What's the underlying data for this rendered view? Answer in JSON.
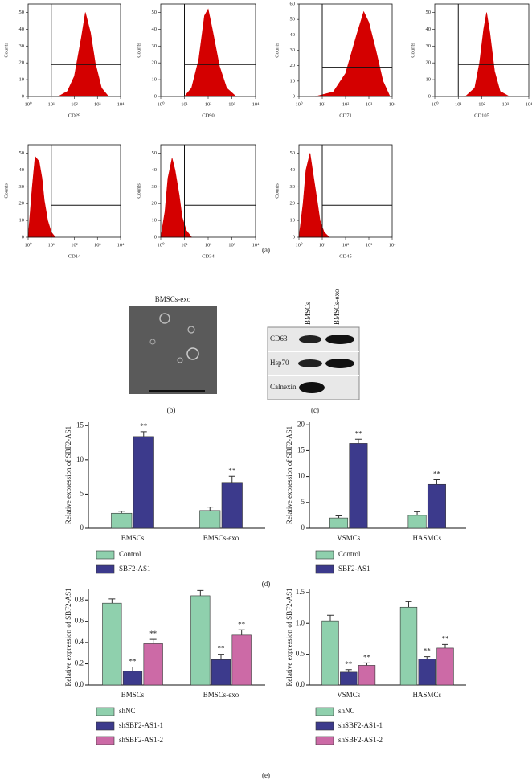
{
  "panel_labels": [
    "(a)",
    "(b)",
    "(c)",
    "(d)",
    "(e)"
  ],
  "micrograph": {
    "title": "BMSCs-exo"
  },
  "blot": {
    "lanes": [
      "BMSCs",
      "BMSCs-exo"
    ],
    "rows": [
      "CD63",
      "Hsp70",
      "Calnexin"
    ]
  },
  "chart_data": [
    {
      "type": "area",
      "x_label": "CD29",
      "y_label": "Counts",
      "xlog": true,
      "xlim": [
        1,
        10000
      ],
      "xticks": [
        {
          "value": 1,
          "label": "10⁰"
        },
        {
          "value": 10,
          "label": "10¹"
        },
        {
          "value": 100,
          "label": "10²"
        },
        {
          "value": 1000,
          "label": "10³"
        },
        {
          "value": 10000,
          "label": "10⁴"
        }
      ],
      "ylim": [
        0,
        55
      ],
      "yticks": [
        0,
        10,
        20,
        30,
        40,
        50
      ],
      "color": "#d40000",
      "x": [
        20,
        50,
        100,
        200,
        300,
        500,
        800,
        1500,
        3000
      ],
      "values": [
        0,
        3,
        12,
        35,
        50,
        38,
        20,
        5,
        0
      ],
      "gate_x": 10,
      "gate_y": 19
    },
    {
      "type": "area",
      "x_label": "CD90",
      "y_label": "Counts",
      "xlog": true,
      "xlim": [
        1,
        10000
      ],
      "xticks": [
        {
          "value": 1,
          "label": "10⁰"
        },
        {
          "value": 10,
          "label": "10¹"
        },
        {
          "value": 100,
          "label": "10²"
        },
        {
          "value": 1000,
          "label": "10³"
        },
        {
          "value": 10000,
          "label": "10⁴"
        }
      ],
      "ylim": [
        0,
        55
      ],
      "yticks": [
        0,
        10,
        20,
        30,
        40,
        50
      ],
      "color": "#d40000",
      "x": [
        10,
        20,
        40,
        70,
        100,
        150,
        300,
        600,
        1500
      ],
      "values": [
        0,
        5,
        22,
        48,
        52,
        40,
        18,
        5,
        0
      ],
      "gate_x": 10,
      "gate_y": 19
    },
    {
      "type": "area",
      "x_label": "CD71",
      "y_label": "Counts",
      "xlog": true,
      "xlim": [
        1,
        10000
      ],
      "xticks": [
        {
          "value": 1,
          "label": "10⁰"
        },
        {
          "value": 10,
          "label": "10¹"
        },
        {
          "value": 100,
          "label": "10²"
        },
        {
          "value": 1000,
          "label": "10³"
        },
        {
          "value": 10000,
          "label": "10⁴"
        }
      ],
      "ylim": [
        0,
        60
      ],
      "yticks": [
        0,
        10,
        20,
        30,
        40,
        50,
        60
      ],
      "color": "#d40000",
      "x": [
        5,
        30,
        100,
        300,
        600,
        1000,
        2000,
        4000,
        8000
      ],
      "values": [
        0,
        3,
        15,
        40,
        55,
        48,
        30,
        10,
        0
      ],
      "gate_x": 10,
      "gate_y": 19
    },
    {
      "type": "area",
      "x_label": "CD105",
      "y_label": "Counts",
      "xlog": true,
      "xlim": [
        1,
        10000
      ],
      "xticks": [
        {
          "value": 1,
          "label": "10⁰"
        },
        {
          "value": 10,
          "label": "10¹"
        },
        {
          "value": 100,
          "label": "10²"
        },
        {
          "value": 1000,
          "label": "10³"
        },
        {
          "value": 10000,
          "label": "10⁴"
        }
      ],
      "ylim": [
        0,
        55
      ],
      "yticks": [
        0,
        10,
        20,
        30,
        40,
        50
      ],
      "color": "#d40000",
      "x": [
        20,
        50,
        80,
        120,
        160,
        220,
        350,
        600,
        1500
      ],
      "values": [
        0,
        5,
        20,
        40,
        50,
        38,
        15,
        3,
        0
      ],
      "gate_x": 10,
      "gate_y": 19
    },
    {
      "type": "area",
      "x_label": "CD14",
      "y_label": "Counts",
      "xlog": true,
      "xlim": [
        1,
        10000
      ],
      "xticks": [
        {
          "value": 1,
          "label": "10⁰"
        },
        {
          "value": 10,
          "label": "10¹"
        },
        {
          "value": 100,
          "label": "10²"
        },
        {
          "value": 1000,
          "label": "10³"
        },
        {
          "value": 10000,
          "label": "10⁴"
        }
      ],
      "ylim": [
        0,
        55
      ],
      "yticks": [
        0,
        10,
        20,
        30,
        40,
        50
      ],
      "color": "#d40000",
      "x": [
        1,
        1.5,
        2,
        3,
        4,
        5,
        7,
        10,
        15
      ],
      "values": [
        0,
        30,
        48,
        45,
        35,
        22,
        10,
        3,
        0
      ],
      "gate_x": 10,
      "gate_y": 19
    },
    {
      "type": "area",
      "x_label": "CD34",
      "y_label": "Counts",
      "xlog": true,
      "xlim": [
        1,
        10000
      ],
      "xticks": [
        {
          "value": 1,
          "label": "10⁰"
        },
        {
          "value": 10,
          "label": "10¹"
        },
        {
          "value": 100,
          "label": "10²"
        },
        {
          "value": 1000,
          "label": "10³"
        },
        {
          "value": 10000,
          "label": "10⁴"
        }
      ],
      "ylim": [
        0,
        55
      ],
      "yticks": [
        0,
        10,
        20,
        30,
        40,
        50
      ],
      "color": "#d40000",
      "x": [
        1,
        1.5,
        2,
        3,
        4,
        6,
        8,
        12,
        20
      ],
      "values": [
        0,
        15,
        35,
        47,
        40,
        25,
        12,
        4,
        0
      ],
      "gate_x": 10,
      "gate_y": 19
    },
    {
      "type": "area",
      "x_label": "CD45",
      "y_label": "Counts",
      "xlog": true,
      "xlim": [
        1,
        10000
      ],
      "xticks": [
        {
          "value": 1,
          "label": "10⁰"
        },
        {
          "value": 10,
          "label": "10¹"
        },
        {
          "value": 100,
          "label": "10²"
        },
        {
          "value": 1000,
          "label": "10³"
        },
        {
          "value": 10000,
          "label": "10⁴"
        }
      ],
      "ylim": [
        0,
        55
      ],
      "yticks": [
        0,
        10,
        20,
        30,
        40,
        50
      ],
      "color": "#d40000",
      "x": [
        1,
        1.5,
        2,
        3,
        4,
        6,
        8,
        12,
        20
      ],
      "values": [
        0,
        20,
        40,
        50,
        38,
        22,
        10,
        3,
        0
      ],
      "gate_x": 10,
      "gate_y": 19
    },
    {
      "type": "bar",
      "y_label": "Relative expression of SBF2-AS1",
      "categories": [
        "BMSCs",
        "BMSCs-exo"
      ],
      "ylim": [
        0,
        15.5
      ],
      "yticks": [
        0,
        5,
        10,
        15
      ],
      "series": [
        {
          "name": "Control",
          "color": "#8fd0ad",
          "values": [
            2.2,
            2.6
          ],
          "errors": [
            0.3,
            0.5
          ]
        },
        {
          "name": "SBF2-AS1",
          "color": "#3c3a8c",
          "values": [
            13.4,
            6.6
          ],
          "errors": [
            0.7,
            1.0
          ],
          "annotations": [
            "**",
            "**"
          ]
        }
      ]
    },
    {
      "type": "bar",
      "y_label": "Relative expression of SBF2-AS1",
      "categories": [
        "VSMCs",
        "HASMCs"
      ],
      "ylim": [
        0,
        20.5
      ],
      "yticks": [
        0,
        5,
        10,
        15,
        20
      ],
      "series": [
        {
          "name": "Control",
          "color": "#8fd0ad",
          "values": [
            2.0,
            2.5
          ],
          "errors": [
            0.4,
            0.7
          ]
        },
        {
          "name": "SBF2-AS1",
          "color": "#3c3a8c",
          "values": [
            16.4,
            8.5
          ],
          "errors": [
            0.8,
            0.9
          ],
          "annotations": [
            "**",
            "**"
          ]
        }
      ]
    },
    {
      "type": "bar",
      "y_label": "Relative expression of SBF2-AS1",
      "categories": [
        "BMSCs",
        "BMSCs-exo"
      ],
      "ylim": [
        0,
        0.9
      ],
      "yticks": [
        {
          "value": 0,
          "label": "0.0"
        },
        0.2,
        0.4,
        0.6,
        0.8
      ],
      "series": [
        {
          "name": "shNC",
          "color": "#8fd0ad",
          "values": [
            0.77,
            0.84
          ],
          "errors": [
            0.04,
            0.05
          ]
        },
        {
          "name": "shSBF2-AS1-1",
          "color": "#3c3a8c",
          "values": [
            0.13,
            0.24
          ],
          "errors": [
            0.04,
            0.05
          ],
          "annotations": [
            "**",
            "**"
          ]
        },
        {
          "name": "shSBF2-AS1-2",
          "color": "#cc6aa6",
          "values": [
            0.39,
            0.47
          ],
          "errors": [
            0.04,
            0.05
          ],
          "annotations": [
            "**",
            "**"
          ]
        }
      ]
    },
    {
      "type": "bar",
      "y_label": "Relative expression of SBF2-AS1",
      "categories": [
        "VSMCs",
        "HASMCs"
      ],
      "ylim": [
        0,
        1.55
      ],
      "yticks": [
        {
          "value": 0,
          "label": "0.0"
        },
        0.5,
        {
          "value": 1,
          "label": "1.0"
        },
        1.5
      ],
      "series": [
        {
          "name": "shNC",
          "color": "#8fd0ad",
          "values": [
            1.04,
            1.26
          ],
          "errors": [
            0.09,
            0.09
          ]
        },
        {
          "name": "shSBF2-AS1-1",
          "color": "#3c3a8c",
          "values": [
            0.21,
            0.42
          ],
          "errors": [
            0.04,
            0.04
          ],
          "annotations": [
            "**",
            "**"
          ]
        },
        {
          "name": "shSBF2-AS1-2",
          "color": "#cc6aa6",
          "values": [
            0.32,
            0.6
          ],
          "errors": [
            0.04,
            0.06
          ],
          "annotations": [
            "**",
            "**"
          ]
        }
      ]
    }
  ]
}
